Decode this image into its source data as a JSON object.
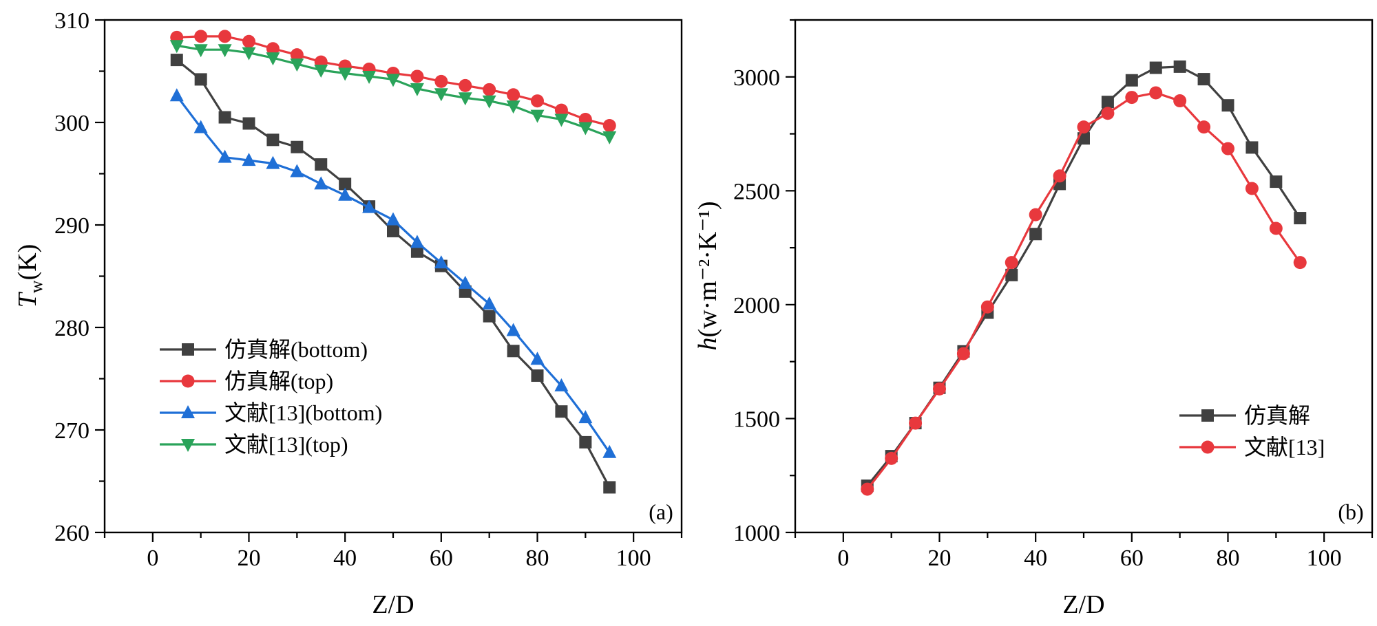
{
  "chart_data": [
    {
      "type": "line",
      "panel_label": "(a)",
      "xlabel": "Z/D",
      "ylabel_main": "T",
      "ylabel_sub": "w",
      "ylabel_unit": "(K)",
      "xlim": [
        -10,
        110
      ],
      "ylim": [
        260,
        310
      ],
      "xticks": [
        0,
        20,
        40,
        60,
        80,
        100
      ],
      "yticks": [
        260,
        270,
        280,
        290,
        300,
        310
      ],
      "legend_position": "middle-left",
      "x": [
        5,
        10,
        15,
        20,
        25,
        30,
        35,
        40,
        45,
        50,
        55,
        60,
        65,
        70,
        75,
        80,
        85,
        90,
        95
      ],
      "series": [
        {
          "name": "仿真解(bottom)",
          "color": "#404040",
          "marker": "square",
          "values": [
            306.1,
            304.2,
            300.5,
            299.9,
            298.3,
            297.6,
            295.9,
            294.0,
            291.8,
            289.4,
            287.4,
            286.0,
            283.5,
            281.1,
            277.7,
            275.3,
            271.8,
            268.8,
            264.4
          ]
        },
        {
          "name": "仿真解(top)",
          "color": "#e8383d",
          "marker": "circle",
          "values": [
            308.3,
            308.4,
            308.4,
            307.9,
            307.2,
            306.6,
            305.9,
            305.5,
            305.2,
            304.8,
            304.5,
            304.0,
            303.6,
            303.2,
            302.7,
            302.1,
            301.2,
            300.3,
            299.7
          ]
        },
        {
          "name": "文献[13](bottom)",
          "color": "#1f6fd6",
          "marker": "triangle-up",
          "values": [
            302.6,
            299.5,
            296.6,
            296.3,
            296.0,
            295.2,
            294.0,
            292.9,
            291.7,
            290.5,
            288.3,
            286.3,
            284.3,
            282.3,
            279.7,
            276.9,
            274.3,
            271.2,
            267.8
          ]
        },
        {
          "name": "文献[13](top)",
          "color": "#2aa35a",
          "marker": "triangle-down",
          "values": [
            307.5,
            307.1,
            307.1,
            306.8,
            306.3,
            305.7,
            305.1,
            304.8,
            304.5,
            304.2,
            303.3,
            302.8,
            302.4,
            302.1,
            301.6,
            300.7,
            300.3,
            299.5,
            298.6
          ]
        }
      ]
    },
    {
      "type": "line",
      "panel_label": "(b)",
      "xlabel": "Z/D",
      "ylabel_main": "h",
      "ylabel_unit": "(w·m⁻²·K⁻¹)",
      "xlim": [
        -10,
        110
      ],
      "ylim": [
        1000,
        3250
      ],
      "xticks": [
        0,
        20,
        40,
        60,
        80,
        100
      ],
      "yticks": [
        1000,
        1500,
        2000,
        2500,
        3000
      ],
      "legend_position": "lower-right",
      "x": [
        5,
        10,
        15,
        20,
        25,
        30,
        35,
        40,
        45,
        50,
        55,
        60,
        65,
        70,
        75,
        80,
        85,
        90,
        95
      ],
      "series": [
        {
          "name": "仿真解",
          "color": "#404040",
          "marker": "square",
          "values": [
            1205,
            1335,
            1480,
            1635,
            1795,
            1965,
            2130,
            2310,
            2530,
            2730,
            2890,
            2985,
            3040,
            3045,
            2990,
            2875,
            2690,
            2540,
            2380
          ]
        },
        {
          "name": "文献[13]",
          "color": "#e8383d",
          "marker": "circle",
          "values": [
            1190,
            1325,
            1480,
            1630,
            1785,
            1990,
            2185,
            2395,
            2565,
            2780,
            2840,
            2910,
            2930,
            2895,
            2780,
            2685,
            2510,
            2335,
            2185
          ]
        }
      ]
    }
  ]
}
